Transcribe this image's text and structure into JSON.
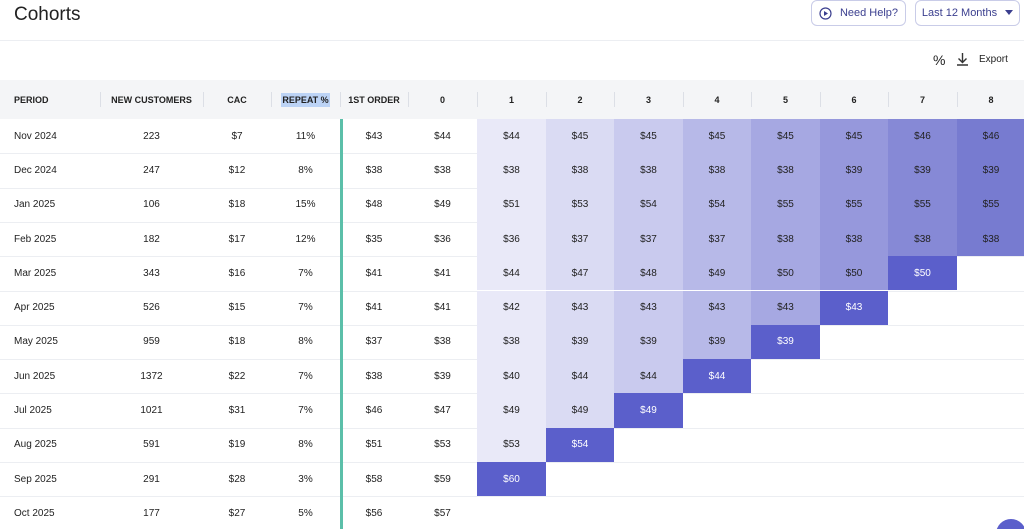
{
  "header": {
    "title": "Cohorts",
    "help_button": "Need Help?",
    "range_button": "Last 12 Months"
  },
  "toolbar": {
    "percent": "%",
    "export": "Export"
  },
  "table": {
    "columns": [
      "PERIOD",
      "NEW CUSTOMERS",
      "CAC",
      "REPEAT %",
      "1ST ORDER",
      "0",
      "1",
      "2",
      "3",
      "4",
      "5",
      "6",
      "7",
      "8"
    ],
    "rows": [
      [
        "Nov 2024",
        "223",
        "$7",
        "11%",
        "$43",
        "$44",
        "$44",
        "$45",
        "$45",
        "$45",
        "$45",
        "$45",
        "$46",
        "$46"
      ],
      [
        "Dec 2024",
        "247",
        "$12",
        "8%",
        "$38",
        "$38",
        "$38",
        "$38",
        "$38",
        "$38",
        "$38",
        "$39",
        "$39",
        "$39"
      ],
      [
        "Jan 2025",
        "106",
        "$18",
        "15%",
        "$48",
        "$49",
        "$51",
        "$53",
        "$54",
        "$54",
        "$55",
        "$55",
        "$55",
        "$55"
      ],
      [
        "Feb 2025",
        "182",
        "$17",
        "12%",
        "$35",
        "$36",
        "$36",
        "$37",
        "$37",
        "$37",
        "$38",
        "$38",
        "$38",
        "$38"
      ],
      [
        "Mar 2025",
        "343",
        "$16",
        "7%",
        "$41",
        "$41",
        "$44",
        "$47",
        "$48",
        "$49",
        "$50",
        "$50",
        "$50"
      ],
      [
        "Apr 2025",
        "526",
        "$15",
        "7%",
        "$41",
        "$41",
        "$42",
        "$43",
        "$43",
        "$43",
        "$43",
        "$43"
      ],
      [
        "May 2025",
        "959",
        "$18",
        "8%",
        "$37",
        "$38",
        "$38",
        "$39",
        "$39",
        "$39",
        "$39"
      ],
      [
        "Jun 2025",
        "1372",
        "$22",
        "7%",
        "$38",
        "$39",
        "$40",
        "$44",
        "$44",
        "$44"
      ],
      [
        "Jul 2025",
        "1021",
        "$31",
        "7%",
        "$46",
        "$47",
        "$49",
        "$49",
        "$49"
      ],
      [
        "Aug 2025",
        "591",
        "$19",
        "8%",
        "$51",
        "$53",
        "$53",
        "$54"
      ],
      [
        "Sep 2025",
        "291",
        "$28",
        "3%",
        "$58",
        "$59",
        "$60"
      ],
      [
        "Oct 2025",
        "177",
        "$27",
        "5%",
        "$56",
        "$57"
      ]
    ]
  }
}
